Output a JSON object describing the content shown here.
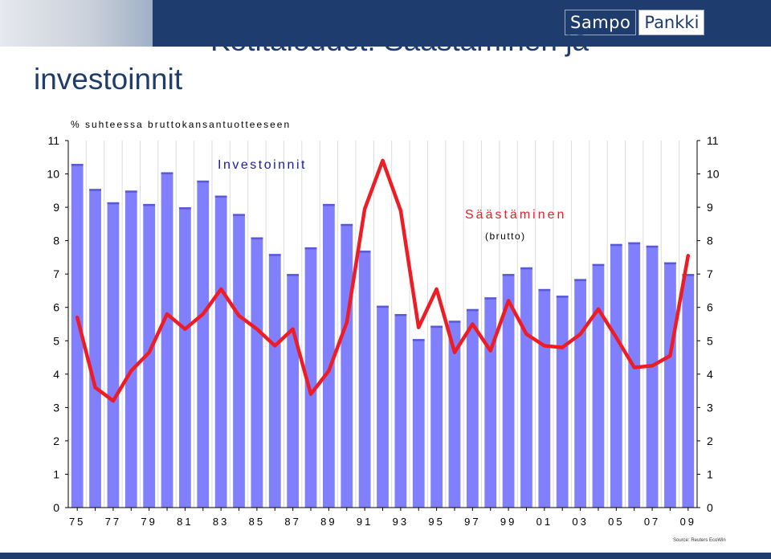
{
  "header": {
    "logo_left": "Sampo",
    "logo_right": "Pankki",
    "title_line1": "Kotitaloudet: Säästäminen ja",
    "title_line2": "investoinnit",
    "brand_color": "#1f3c6e"
  },
  "source": "Source: Reuters EcoWin",
  "chart_data": {
    "type": "bar",
    "ylabel": "% suhteessa bruttokansantuotteeseen",
    "ylim": [
      0,
      11
    ],
    "yticks": [
      0,
      1,
      2,
      3,
      4,
      5,
      6,
      7,
      8,
      9,
      10,
      11
    ],
    "xtick_labels": [
      "75",
      "77",
      "79",
      "81",
      "83",
      "85",
      "87",
      "89",
      "91",
      "93",
      "95",
      "97",
      "99",
      "01",
      "03",
      "05",
      "07",
      "09"
    ],
    "x": [
      1975,
      1976,
      1977,
      1978,
      1979,
      1980,
      1981,
      1982,
      1983,
      1984,
      1985,
      1986,
      1987,
      1988,
      1989,
      1990,
      1991,
      1992,
      1993,
      1994,
      1995,
      1996,
      1997,
      1998,
      1999,
      2000,
      2001,
      2002,
      2003,
      2004,
      2005,
      2006,
      2007,
      2008,
      2009
    ],
    "grid": true,
    "series": [
      {
        "name": "Investoinnit",
        "kind": "bar",
        "color": "#8080ff",
        "values": [
          10.3,
          9.55,
          9.15,
          9.5,
          9.1,
          10.05,
          9.0,
          9.8,
          9.35,
          8.8,
          8.1,
          7.6,
          7.0,
          7.8,
          9.1,
          8.5,
          7.7,
          6.05,
          5.8,
          5.05,
          5.45,
          5.6,
          5.95,
          6.3,
          7.0,
          7.2,
          6.55,
          6.35,
          6.85,
          7.3,
          7.9,
          7.95,
          7.85,
          7.35,
          7.0
        ]
      },
      {
        "name": "Säästäminen",
        "sublabel": "(brutto)",
        "kind": "line",
        "color": "#ee1c25",
        "values": [
          5.7,
          3.6,
          3.2,
          4.1,
          4.65,
          5.8,
          5.35,
          5.8,
          6.55,
          5.75,
          5.35,
          4.85,
          5.35,
          3.4,
          4.1,
          5.55,
          8.95,
          10.4,
          8.9,
          5.4,
          6.55,
          4.65,
          5.5,
          4.7,
          6.2,
          5.2,
          4.85,
          4.8,
          5.2,
          5.95,
          5.1,
          4.2,
          4.25,
          4.55,
          7.55
        ]
      }
    ]
  }
}
